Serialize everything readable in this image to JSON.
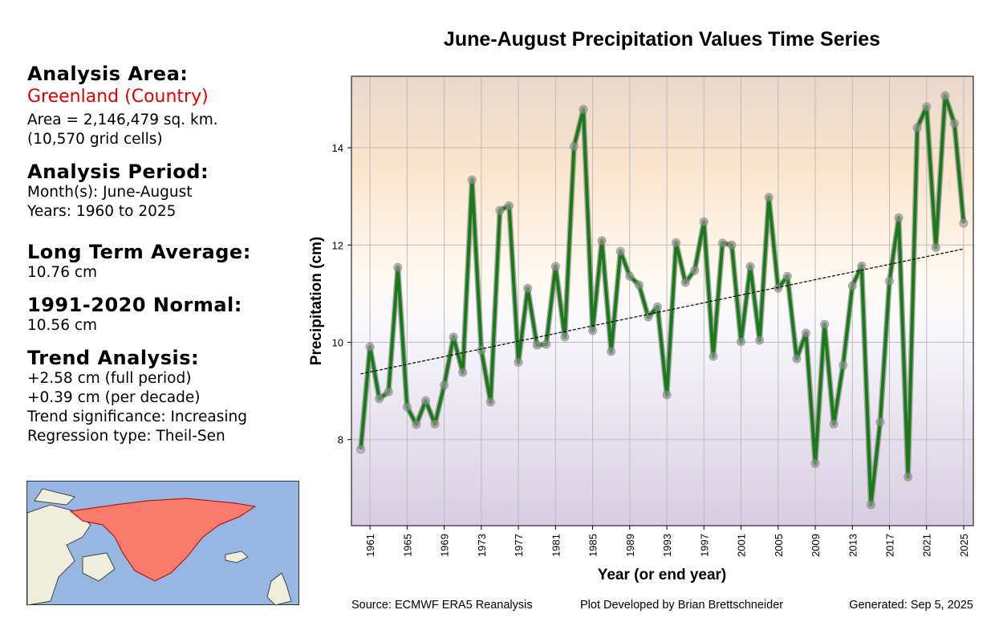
{
  "info": {
    "area_heading": "Analysis Area:",
    "area_name": "Greenland (Country)",
    "area_size": "Area = 2,146,479 sq. km.",
    "grid_cells": "(10,570 grid cells)",
    "period_heading": "Analysis Period:",
    "months": "Month(s): June-August",
    "years": "Years: 1960 to 2025",
    "lta_heading": "Long Term Average:",
    "lta": "10.76 cm",
    "normal_heading": "1991-2020 Normal:",
    "normal": "10.56 cm",
    "trend_heading": "Trend Analysis:",
    "trend_lines": [
      "+2.58 cm (full period)",
      "+0.39 cm (per decade)",
      "Trend significance: Increasing",
      "Regression type: Theil-Sen"
    ]
  },
  "footer": {
    "source": "Source: ECMWF ERA5 Reanalysis",
    "developer": "Plot Developed by Brian Brettschneider",
    "generated": "Generated: Sep 5, 2025"
  },
  "chart_data": {
    "type": "line",
    "title": "June-August Precipitation Values Time Series",
    "xlabel": "Year (or end year)",
    "ylabel": "Precipitation (cm)",
    "x": [
      1960,
      1961,
      1962,
      1963,
      1964,
      1965,
      1966,
      1967,
      1968,
      1969,
      1970,
      1971,
      1972,
      1973,
      1974,
      1975,
      1976,
      1977,
      1978,
      1979,
      1980,
      1981,
      1982,
      1983,
      1984,
      1985,
      1986,
      1987,
      1988,
      1989,
      1990,
      1991,
      1992,
      1993,
      1994,
      1995,
      1996,
      1997,
      1998,
      1999,
      2000,
      2001,
      2002,
      2003,
      2004,
      2005,
      2006,
      2007,
      2008,
      2009,
      2010,
      2011,
      2012,
      2013,
      2014,
      2015,
      2016,
      2017,
      2018,
      2019,
      2020,
      2021,
      2022,
      2023,
      2024,
      2025
    ],
    "series": [
      {
        "color": "#1a7a1a",
        "values": [
          7.8,
          9.91,
          8.84,
          8.98,
          11.54,
          8.67,
          8.31,
          8.8,
          8.32,
          9.12,
          10.11,
          9.38,
          13.34,
          9.84,
          8.77,
          12.71,
          12.81,
          9.59,
          11.11,
          9.94,
          9.96,
          11.56,
          10.11,
          14.03,
          14.79,
          10.24,
          12.09,
          9.81,
          11.87,
          11.36,
          11.18,
          10.52,
          10.73,
          8.92,
          12.05,
          11.23,
          11.48,
          12.48,
          9.71,
          12.04,
          12.0,
          10.01,
          11.56,
          10.04,
          12.98,
          11.11,
          11.36,
          9.66,
          10.19,
          7.51,
          10.37,
          8.32,
          9.53,
          11.16,
          11.57,
          6.66,
          8.36,
          11.26,
          12.56,
          7.23,
          14.41,
          14.84,
          11.95,
          15.07,
          14.5,
          12.45
        ]
      }
    ],
    "trend": {
      "x": [
        1960,
        2025
      ],
      "values": [
        9.35,
        11.92
      ],
      "color": "#000000"
    },
    "xlim": [
      1959,
      2026.04
    ],
    "ylim": [
      6.23,
      15.47
    ],
    "xticks": [
      1961,
      1965,
      1969,
      1973,
      1977,
      1981,
      1985,
      1989,
      1993,
      1997,
      2001,
      2005,
      2009,
      2013,
      2017,
      2021,
      2025
    ],
    "yticks": [
      8,
      10,
      12,
      14
    ],
    "grid": true
  }
}
